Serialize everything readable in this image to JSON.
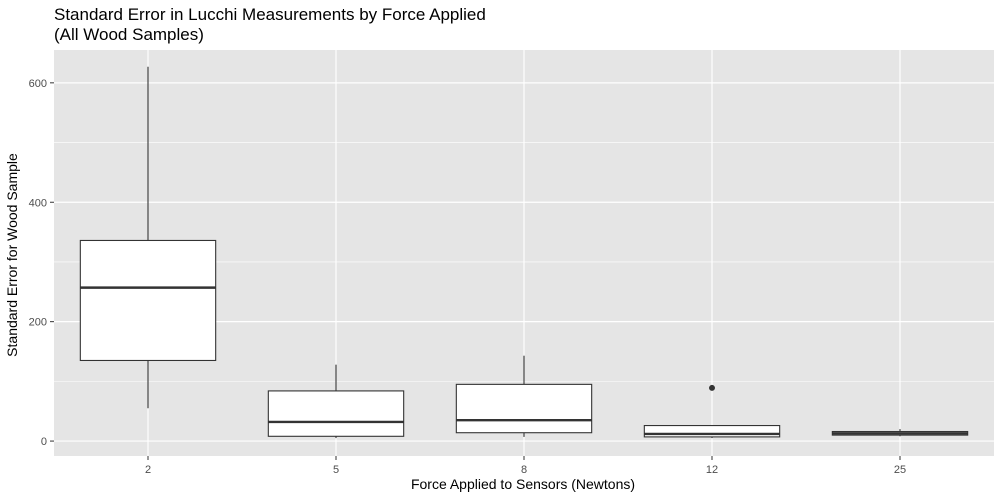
{
  "chart_data": {
    "type": "boxplot",
    "title": "Standard Error in Lucchi Measurements by Force Applied",
    "subtitle": "(All Wood Samples)",
    "xlabel": "Force Applied to Sensors (Newtons)",
    "ylabel": "Standard Error for Wood Sample",
    "categories": [
      "2",
      "5",
      "8",
      "12",
      "25"
    ],
    "yticks": [
      0,
      200,
      400,
      600
    ],
    "ylim": [
      -25,
      655
    ],
    "grid": true,
    "panel_background": "#e5e5e5",
    "grid_color": "#ffffff",
    "box_fill": "#ffffff",
    "box_stroke": "#333333",
    "boxes": [
      {
        "category": "2",
        "whisker_low": 55,
        "q1": 135,
        "median": 257,
        "q3": 336,
        "whisker_high": 627,
        "outliers": []
      },
      {
        "category": "5",
        "whisker_low": 5,
        "q1": 8,
        "median": 32,
        "q3": 84,
        "whisker_high": 128,
        "outliers": []
      },
      {
        "category": "8",
        "whisker_low": 7,
        "q1": 14,
        "median": 35,
        "q3": 95,
        "whisker_high": 143,
        "outliers": []
      },
      {
        "category": "12",
        "whisker_low": 5,
        "q1": 7,
        "median": 12,
        "q3": 26,
        "whisker_high": 26,
        "outliers": [
          89
        ]
      },
      {
        "category": "25",
        "whisker_low": 8,
        "q1": 10,
        "median": 13,
        "q3": 16,
        "whisker_high": 20,
        "outliers": []
      }
    ]
  }
}
